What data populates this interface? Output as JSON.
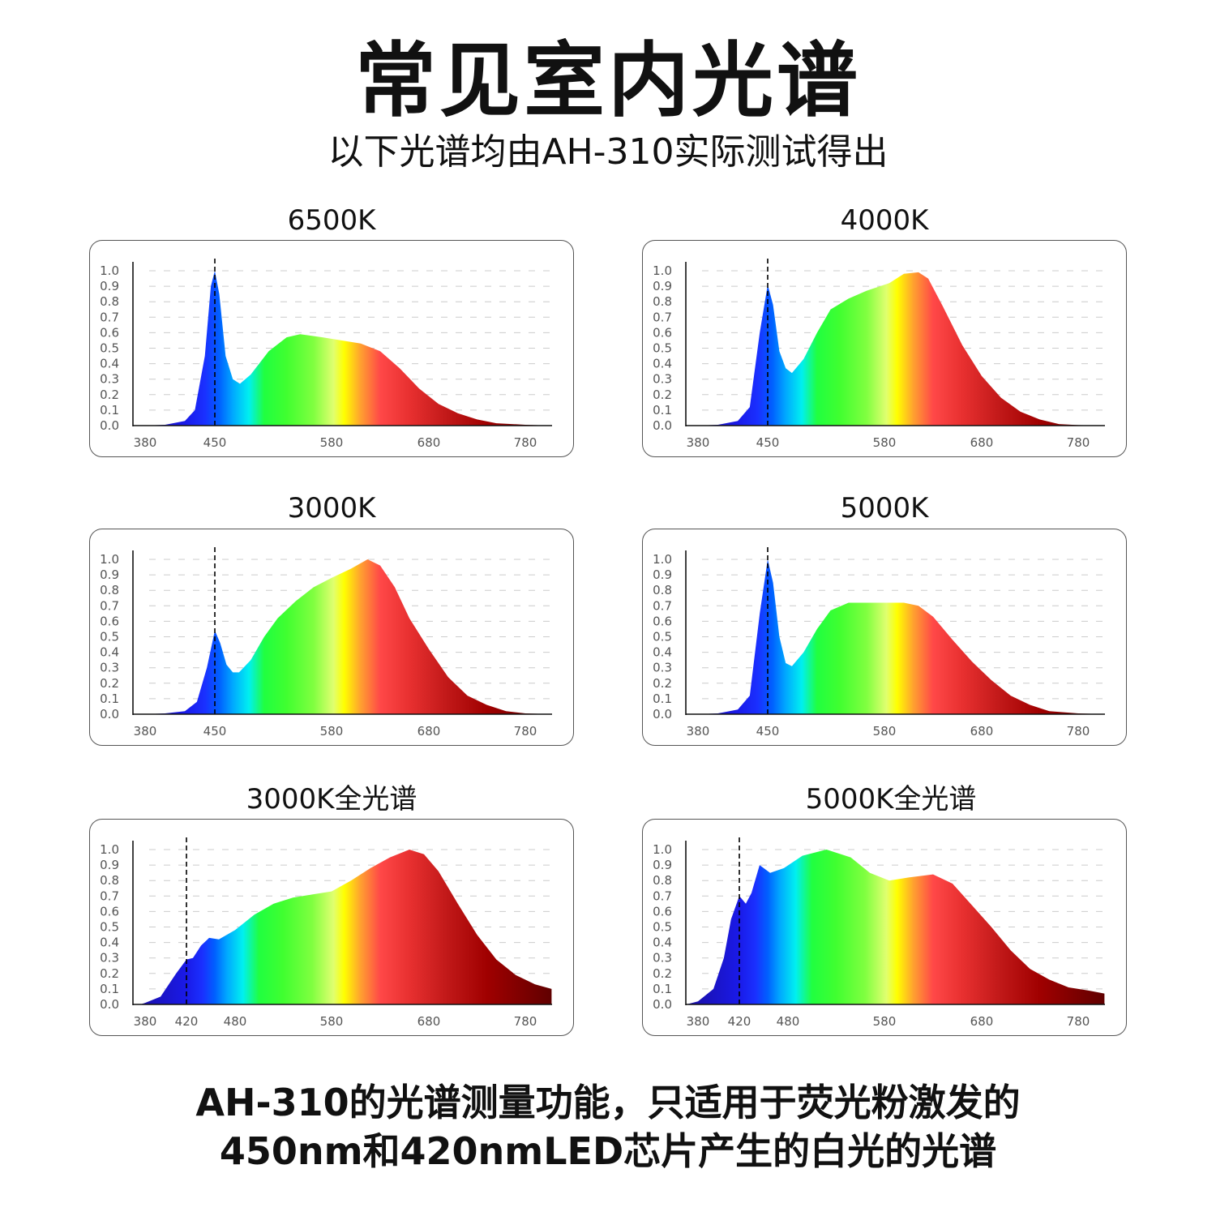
{
  "header": {
    "title": "常见室内光谱",
    "subtitle": "以下光谱均由AH-310实际测试得出"
  },
  "footer": {
    "line1": "AH-310的光谱测量功能，只适用于荧光粉激发的",
    "line2": "450nm和420nmLED芯片产生的白光的光谱"
  },
  "colors": {
    "axis": "#111111",
    "grid": "#cccccc",
    "tick_text": "#555555",
    "border": "#555555"
  },
  "chart_data": [
    {
      "type": "area",
      "title": "6500K",
      "ylim": [
        0,
        1.0
      ],
      "yticks": [
        "0.0",
        "0.1",
        "0.2",
        "0.3",
        "0.4",
        "0.5",
        "0.6",
        "0.7",
        "0.8",
        "0.9",
        "1.0"
      ],
      "xticks": [
        380,
        450,
        580,
        680,
        780
      ],
      "marker": 450,
      "grid": true,
      "fill": "spectral gradient",
      "points": [
        [
          368,
          0
        ],
        [
          380,
          0
        ],
        [
          400,
          0.005
        ],
        [
          420,
          0.03
        ],
        [
          430,
          0.1
        ],
        [
          440,
          0.45
        ],
        [
          446,
          0.9
        ],
        [
          450,
          1.0
        ],
        [
          455,
          0.85
        ],
        [
          462,
          0.45
        ],
        [
          470,
          0.3
        ],
        [
          478,
          0.27
        ],
        [
          490,
          0.33
        ],
        [
          510,
          0.48
        ],
        [
          530,
          0.57
        ],
        [
          545,
          0.59
        ],
        [
          570,
          0.57
        ],
        [
          590,
          0.55
        ],
        [
          610,
          0.53
        ],
        [
          630,
          0.48
        ],
        [
          650,
          0.37
        ],
        [
          670,
          0.24
        ],
        [
          690,
          0.14
        ],
        [
          710,
          0.08
        ],
        [
          730,
          0.04
        ],
        [
          750,
          0.015
        ],
        [
          780,
          0.005
        ],
        [
          807,
          0
        ]
      ]
    },
    {
      "type": "area",
      "title": "4000K",
      "ylim": [
        0,
        1.0
      ],
      "yticks": [
        "0.0",
        "0.1",
        "0.2",
        "0.3",
        "0.4",
        "0.5",
        "0.6",
        "0.7",
        "0.8",
        "0.9",
        "1.0"
      ],
      "xticks": [
        380,
        450,
        580,
        680,
        780
      ],
      "marker": 450,
      "grid": true,
      "fill": "spectral gradient",
      "points": [
        [
          368,
          0
        ],
        [
          380,
          0
        ],
        [
          400,
          0.005
        ],
        [
          420,
          0.03
        ],
        [
          432,
          0.12
        ],
        [
          442,
          0.6
        ],
        [
          450,
          0.91
        ],
        [
          456,
          0.78
        ],
        [
          463,
          0.48
        ],
        [
          470,
          0.37
        ],
        [
          477,
          0.34
        ],
        [
          490,
          0.43
        ],
        [
          505,
          0.6
        ],
        [
          520,
          0.75
        ],
        [
          540,
          0.82
        ],
        [
          560,
          0.87
        ],
        [
          585,
          0.92
        ],
        [
          600,
          0.98
        ],
        [
          615,
          0.99
        ],
        [
          625,
          0.95
        ],
        [
          640,
          0.77
        ],
        [
          660,
          0.52
        ],
        [
          680,
          0.32
        ],
        [
          700,
          0.18
        ],
        [
          720,
          0.09
        ],
        [
          740,
          0.04
        ],
        [
          760,
          0.01
        ],
        [
          780,
          0.003
        ],
        [
          807,
          0
        ]
      ]
    },
    {
      "type": "area",
      "title": "3000K",
      "ylim": [
        0,
        1.0
      ],
      "yticks": [
        "0.0",
        "0.1",
        "0.2",
        "0.3",
        "0.4",
        "0.5",
        "0.6",
        "0.7",
        "0.8",
        "0.9",
        "1.0"
      ],
      "xticks": [
        380,
        450,
        580,
        680,
        780
      ],
      "marker": 450,
      "grid": true,
      "fill": "spectral gradient",
      "points": [
        [
          368,
          0
        ],
        [
          380,
          0
        ],
        [
          400,
          0.005
        ],
        [
          420,
          0.02
        ],
        [
          432,
          0.08
        ],
        [
          442,
          0.3
        ],
        [
          450,
          0.54
        ],
        [
          456,
          0.46
        ],
        [
          463,
          0.32
        ],
        [
          470,
          0.27
        ],
        [
          477,
          0.27
        ],
        [
          490,
          0.35
        ],
        [
          505,
          0.5
        ],
        [
          520,
          0.62
        ],
        [
          540,
          0.73
        ],
        [
          560,
          0.82
        ],
        [
          580,
          0.88
        ],
        [
          600,
          0.94
        ],
        [
          617,
          1.0
        ],
        [
          630,
          0.96
        ],
        [
          645,
          0.82
        ],
        [
          660,
          0.62
        ],
        [
          680,
          0.42
        ],
        [
          700,
          0.24
        ],
        [
          720,
          0.12
        ],
        [
          740,
          0.06
        ],
        [
          760,
          0.02
        ],
        [
          780,
          0.005
        ],
        [
          807,
          0
        ]
      ]
    },
    {
      "type": "area",
      "title": "5000K",
      "ylim": [
        0,
        1.0
      ],
      "yticks": [
        "0.0",
        "0.1",
        "0.2",
        "0.3",
        "0.4",
        "0.5",
        "0.6",
        "0.7",
        "0.8",
        "0.9",
        "1.0"
      ],
      "xticks": [
        380,
        450,
        580,
        680,
        780
      ],
      "marker": 450,
      "grid": true,
      "fill": "spectral gradient",
      "points": [
        [
          368,
          0
        ],
        [
          380,
          0
        ],
        [
          400,
          0.005
        ],
        [
          420,
          0.03
        ],
        [
          432,
          0.12
        ],
        [
          442,
          0.65
        ],
        [
          450,
          1.0
        ],
        [
          456,
          0.85
        ],
        [
          463,
          0.5
        ],
        [
          470,
          0.33
        ],
        [
          477,
          0.31
        ],
        [
          490,
          0.4
        ],
        [
          505,
          0.55
        ],
        [
          520,
          0.67
        ],
        [
          540,
          0.72
        ],
        [
          570,
          0.72
        ],
        [
          600,
          0.72
        ],
        [
          615,
          0.7
        ],
        [
          630,
          0.63
        ],
        [
          650,
          0.48
        ],
        [
          670,
          0.34
        ],
        [
          690,
          0.22
        ],
        [
          710,
          0.12
        ],
        [
          730,
          0.06
        ],
        [
          750,
          0.02
        ],
        [
          780,
          0.005
        ],
        [
          807,
          0
        ]
      ]
    },
    {
      "type": "area",
      "title": "3000K全光谱",
      "ylim": [
        0,
        1.0
      ],
      "yticks": [
        "0.0",
        "0.1",
        "0.2",
        "0.3",
        "0.4",
        "0.5",
        "0.6",
        "0.7",
        "0.8",
        "0.9",
        "1.0"
      ],
      "xticks": [
        380,
        420,
        480,
        580,
        680,
        780
      ],
      "marker": 420,
      "grid": true,
      "fill": "spectral gradient",
      "points": [
        [
          375,
          0
        ],
        [
          380,
          0.01
        ],
        [
          395,
          0.05
        ],
        [
          410,
          0.2
        ],
        [
          420,
          0.29
        ],
        [
          428,
          0.3
        ],
        [
          438,
          0.38
        ],
        [
          448,
          0.43
        ],
        [
          460,
          0.42
        ],
        [
          480,
          0.48
        ],
        [
          500,
          0.58
        ],
        [
          520,
          0.65
        ],
        [
          540,
          0.69
        ],
        [
          560,
          0.71
        ],
        [
          580,
          0.73
        ],
        [
          600,
          0.8
        ],
        [
          620,
          0.88
        ],
        [
          640,
          0.95
        ],
        [
          660,
          1.0
        ],
        [
          675,
          0.97
        ],
        [
          690,
          0.86
        ],
        [
          710,
          0.65
        ],
        [
          730,
          0.45
        ],
        [
          750,
          0.29
        ],
        [
          770,
          0.19
        ],
        [
          790,
          0.13
        ],
        [
          807,
          0.1
        ]
      ]
    },
    {
      "type": "area",
      "title": "5000K全光谱",
      "ylim": [
        0,
        1.0
      ],
      "yticks": [
        "0.0",
        "0.1",
        "0.2",
        "0.3",
        "0.4",
        "0.5",
        "0.6",
        "0.7",
        "0.8",
        "0.9",
        "1.0"
      ],
      "xticks": [
        380,
        420,
        480,
        580,
        680,
        780
      ],
      "marker": 420,
      "grid": true,
      "fill": "spectral gradient",
      "points": [
        [
          368,
          0
        ],
        [
          380,
          0.02
        ],
        [
          395,
          0.1
        ],
        [
          405,
          0.3
        ],
        [
          412,
          0.55
        ],
        [
          420,
          0.7
        ],
        [
          428,
          0.65
        ],
        [
          435,
          0.72
        ],
        [
          445,
          0.9
        ],
        [
          458,
          0.85
        ],
        [
          475,
          0.88
        ],
        [
          495,
          0.96
        ],
        [
          520,
          1.0
        ],
        [
          545,
          0.95
        ],
        [
          565,
          0.85
        ],
        [
          585,
          0.8
        ],
        [
          605,
          0.82
        ],
        [
          630,
          0.84
        ],
        [
          650,
          0.78
        ],
        [
          670,
          0.64
        ],
        [
          690,
          0.5
        ],
        [
          710,
          0.35
        ],
        [
          730,
          0.23
        ],
        [
          750,
          0.16
        ],
        [
          770,
          0.11
        ],
        [
          790,
          0.09
        ],
        [
          807,
          0.07
        ]
      ]
    }
  ]
}
